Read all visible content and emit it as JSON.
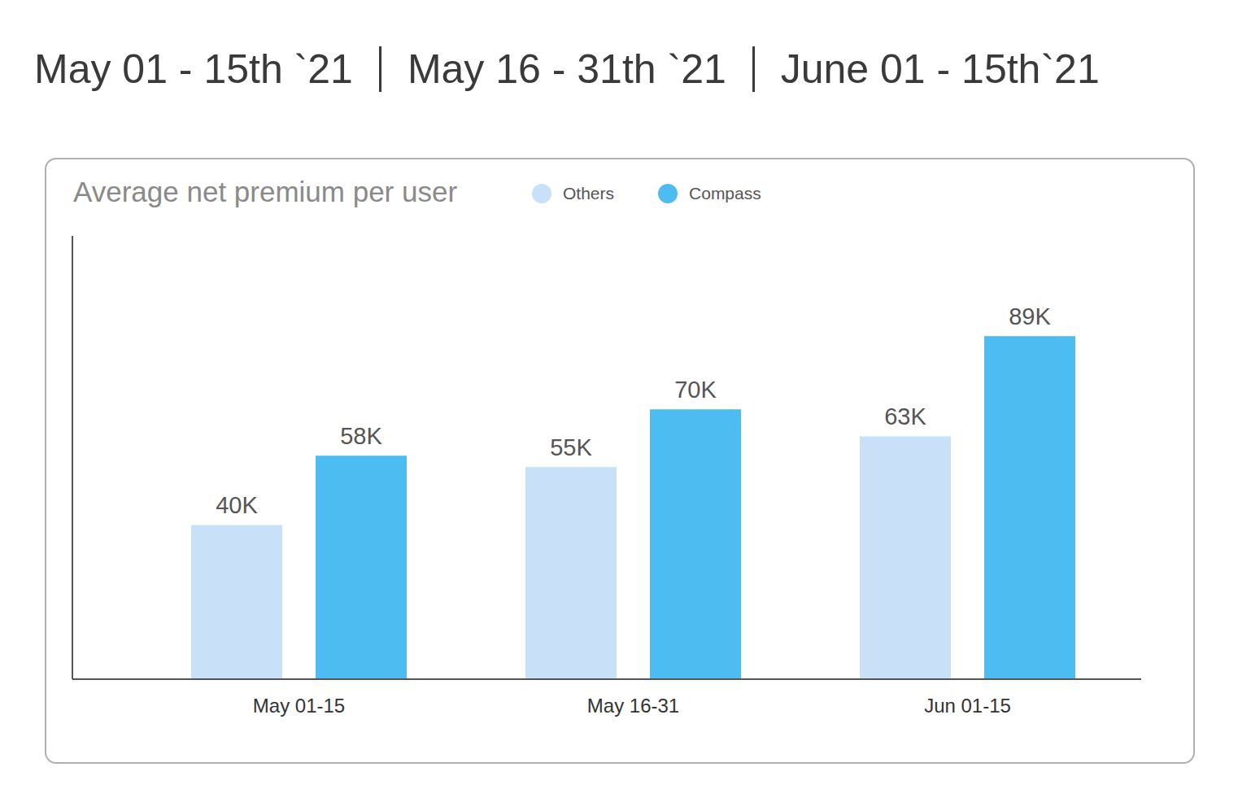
{
  "header": [
    "May 01 - 15th `21",
    "May 16 - 31th `21",
    "June 01 - 15th`21"
  ],
  "chart_data": {
    "type": "bar",
    "title": "Average net premium per user",
    "categories": [
      "May 01-15",
      "May 16-31",
      "Jun 01-15"
    ],
    "series": [
      {
        "name": "Others",
        "color": "#c8e1f9",
        "values": [
          40000,
          55000,
          63000
        ],
        "value_labels": [
          "40K",
          "55K",
          "63K"
        ]
      },
      {
        "name": "Compass",
        "color": "#4dbdf1",
        "values": [
          58000,
          70000,
          89000
        ],
        "value_labels": [
          "58K",
          "70K",
          "89K"
        ]
      }
    ],
    "ylim": [
      0,
      115000
    ],
    "data_labels": true,
    "tick_labels": "x",
    "legend": "top",
    "grid": false
  }
}
